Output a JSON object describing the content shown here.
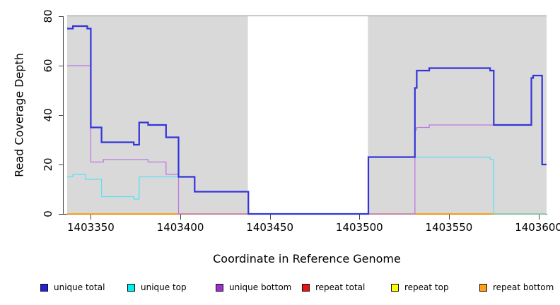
{
  "figure_title": "",
  "axes": {
    "x_title": "Coordinate in Reference Genome",
    "y_title": "Read Coverage Depth"
  },
  "chart_data": {
    "type": "line",
    "subtype": "step-coverage-plot",
    "xlabel": "Coordinate in Reference Genome",
    "ylabel": "Read Coverage Depth",
    "xlim": [
      1403336.8,
      1403604.5
    ],
    "ylim": [
      0,
      80
    ],
    "x_ticks": [
      1403350,
      1403400,
      1403450,
      1403500,
      1403550,
      1403600
    ],
    "y_ticks": [
      0,
      20,
      40,
      60,
      80
    ],
    "grid": false,
    "background_color": "#ffffff",
    "shade_color": "#d9d9d9",
    "shaded_regions": [
      {
        "from": 1403336.8,
        "to": 1403437.7
      },
      {
        "from": 1403504.7,
        "to": 1403604.5
      }
    ],
    "series": [
      {
        "name": "repeat total",
        "color": "#e01818",
        "width": 1.2,
        "points": [
          [
            1403336.8,
            0
          ],
          [
            1403604.5,
            0
          ]
        ]
      },
      {
        "name": "repeat top",
        "color": "#f2f20a",
        "width": 1.2,
        "points": [
          [
            1403336.8,
            0
          ],
          [
            1403604.5,
            0
          ]
        ]
      },
      {
        "name": "repeat bottom",
        "color": "#ff9d00",
        "width": 1.5,
        "points": [
          [
            1403336.8,
            0
          ],
          [
            1403604.5,
            0
          ]
        ]
      },
      {
        "name": "unique top",
        "color": "#5ce2f0",
        "width": 1.3,
        "points": [
          [
            1403336.8,
            15
          ],
          [
            1403340,
            16
          ],
          [
            1403347,
            14
          ],
          [
            1403356,
            7
          ],
          [
            1403374,
            6
          ],
          [
            1403377,
            15
          ],
          [
            1403408,
            9
          ],
          [
            1403438,
            0
          ],
          [
            1403505,
            23
          ],
          [
            1403573,
            22
          ],
          [
            1403575,
            0
          ],
          [
            1403604.5,
            0
          ]
        ]
      },
      {
        "name": "unique bottom",
        "color": "#bb79e2",
        "width": 1.3,
        "points": [
          [
            1403336.8,
            60
          ],
          [
            1403350,
            21
          ],
          [
            1403357,
            22
          ],
          [
            1403382,
            21
          ],
          [
            1403392,
            16
          ],
          [
            1403399,
            0
          ],
          [
            1403531,
            34
          ],
          [
            1403532,
            35
          ],
          [
            1403539,
            36
          ],
          [
            1403596,
            55
          ],
          [
            1403597,
            56
          ],
          [
            1403602,
            20
          ],
          [
            1403604.5,
            20
          ]
        ]
      },
      {
        "name": "unique total",
        "color": "#3434d9",
        "width": 2.2,
        "points": [
          [
            1403336.8,
            75
          ],
          [
            1403340,
            76
          ],
          [
            1403348,
            75
          ],
          [
            1403350,
            35
          ],
          [
            1403356,
            29
          ],
          [
            1403374,
            28
          ],
          [
            1403377,
            37
          ],
          [
            1403382,
            36
          ],
          [
            1403392,
            31
          ],
          [
            1403399,
            15
          ],
          [
            1403408,
            9
          ],
          [
            1403438,
            0
          ],
          [
            1403505,
            23
          ],
          [
            1403531,
            51
          ],
          [
            1403532,
            58
          ],
          [
            1403539,
            59
          ],
          [
            1403573,
            58
          ],
          [
            1403575,
            36
          ],
          [
            1403596,
            55
          ],
          [
            1403597,
            56
          ],
          [
            1403602,
            20
          ],
          [
            1403604.5,
            20
          ]
        ]
      }
    ],
    "legend": {
      "position": "bottom",
      "entries": [
        {
          "label": "unique total",
          "color": "#2222dd"
        },
        {
          "label": "unique top",
          "color": "#00f0f0"
        },
        {
          "label": "unique bottom",
          "color": "#9a30cf"
        },
        {
          "label": "repeat total",
          "color": "#ee1111"
        },
        {
          "label": "repeat top",
          "color": "#ffff00"
        },
        {
          "label": "repeat bottom",
          "color": "#ffa018"
        }
      ]
    }
  }
}
